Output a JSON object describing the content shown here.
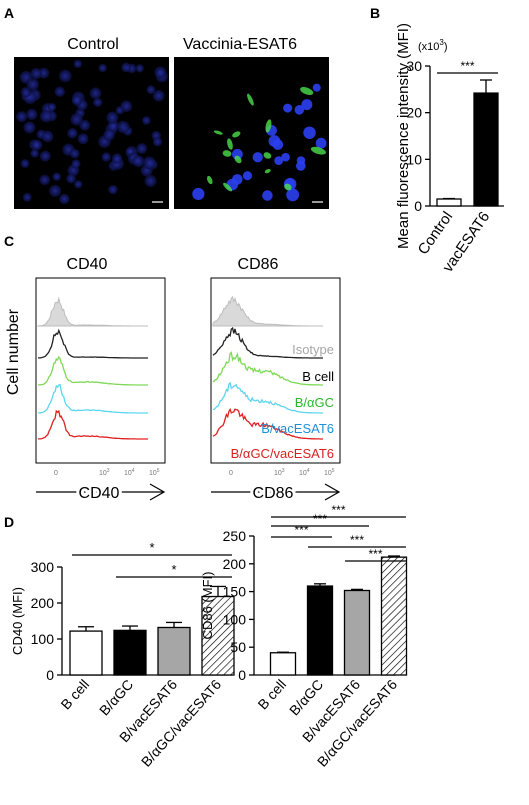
{
  "panels": {
    "A": {
      "label": "A",
      "images": [
        {
          "title": "Control",
          "stain": "blue"
        },
        {
          "title": "Vaccinia-ESAT6",
          "stain": "blue+green"
        }
      ]
    },
    "B": {
      "label": "B",
      "multiplier": "(x10",
      "multiplier_exp": "3",
      "multiplier_close": ")",
      "significance": "***"
    },
    "C": {
      "label": "C",
      "y_label": "Cell number",
      "histograms": [
        {
          "title": "CD40",
          "x_label": "CD40"
        },
        {
          "title": "CD86",
          "x_label": "CD86"
        }
      ],
      "tick_labels": [
        "0",
        "10",
        "3",
        "10",
        "4",
        "10",
        "5"
      ],
      "legend": [
        {
          "label": "Isotype",
          "color": "#a6a6a6"
        },
        {
          "label": "B cell",
          "color": "#000000"
        },
        {
          "label": "B/αGC",
          "color": "#2db52d"
        },
        {
          "label": "B/vacESAT6",
          "color": "#1f8fd6"
        },
        {
          "label": "B/αGC/vacESAT6",
          "color": "#d62020"
        }
      ],
      "trace_colors": [
        "#bdbdbd",
        "#222222",
        "#7ed957",
        "#5cd6f0",
        "#e02020"
      ]
    },
    "D": {
      "label": "D"
    }
  },
  "chart_data": [
    {
      "type": "bar",
      "panel": "B",
      "categories": [
        "Control",
        "vacESAT6"
      ],
      "values": [
        1.5,
        24.2
      ],
      "errors": [
        0.1,
        2.8
      ],
      "fills": [
        "white",
        "black"
      ],
      "ylabel": "Mean fluorescence intensity (MFI)",
      "ylim": [
        0,
        30
      ],
      "yticks": [
        0,
        10,
        20,
        30
      ],
      "significance": [
        {
          "from": 0,
          "to": 1,
          "label": "***"
        }
      ]
    },
    {
      "type": "bar",
      "panel": "D-left",
      "categories": [
        "B cell",
        "B/αGC",
        "B/vacESAT6",
        "B/αGC/vacESAT6"
      ],
      "values": [
        122,
        124,
        132,
        218
      ],
      "errors": [
        12,
        12,
        14,
        28
      ],
      "fills": [
        "white",
        "black",
        "gray",
        "hatch"
      ],
      "ylabel": "CD40 (MFI)",
      "ylim": [
        0,
        300
      ],
      "yticks": [
        0,
        100,
        200,
        300
      ],
      "significance": [
        {
          "from": 0,
          "to": 3,
          "label": "*"
        },
        {
          "from": 1,
          "to": 3,
          "label": "*"
        }
      ]
    },
    {
      "type": "bar",
      "panel": "D-right",
      "categories": [
        "B cell",
        "B/αGC",
        "B/vacESAT6",
        "B/αGC/vacESAT6"
      ],
      "values": [
        40,
        160,
        152,
        212
      ],
      "errors": [
        1,
        4,
        2,
        2
      ],
      "fills": [
        "white",
        "black",
        "gray",
        "hatch"
      ],
      "ylabel": "CD86 (MFI)",
      "ylim": [
        0,
        250
      ],
      "yticks": [
        0,
        50,
        100,
        150,
        200,
        250
      ],
      "significance": [
        {
          "from": 0,
          "to": 3,
          "label": "***"
        },
        {
          "from": 0,
          "to": 2,
          "label": "***"
        },
        {
          "from": 0,
          "to": 1,
          "label": "***"
        },
        {
          "from": 1,
          "to": 3,
          "label": "***"
        },
        {
          "from": 2,
          "to": 3,
          "label": "***"
        }
      ]
    }
  ]
}
